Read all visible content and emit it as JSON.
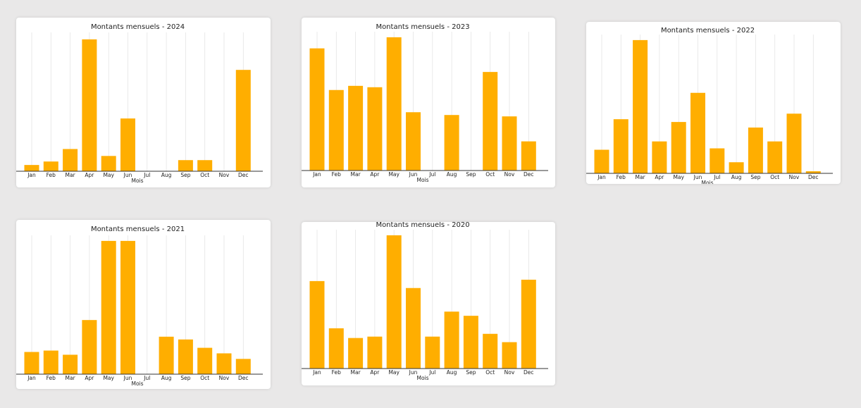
{
  "chart_data": [
    {
      "type": "bar",
      "title": "Montants mensuels - 2024",
      "x_label": "Mois",
      "color": "#ffae00",
      "grid": true,
      "ylim": [
        0,
        100
      ],
      "categories": [
        "Jan",
        "Feb",
        "Mar",
        "Apr",
        "May",
        "Jun",
        "Jul",
        "Aug",
        "Sep",
        "Oct",
        "Nov",
        "Dec"
      ],
      "values": [
        4.5,
        7,
        16,
        95,
        11,
        38,
        0,
        0,
        8,
        8,
        0,
        73
      ]
    },
    {
      "type": "bar",
      "title": "Montants mensuels - 2023",
      "x_label": "Mois",
      "color": "#ffae00",
      "grid": true,
      "ylim": [
        0,
        100
      ],
      "categories": [
        "Jan",
        "Feb",
        "Mar",
        "Apr",
        "May",
        "Jun",
        "Jul",
        "Aug",
        "Sep",
        "Oct",
        "Nov",
        "Dec"
      ],
      "values": [
        88,
        58,
        61,
        60,
        96,
        42,
        0,
        40,
        0,
        71,
        39,
        21
      ]
    },
    {
      "type": "bar",
      "title": "Montants mensuels - 2022",
      "x_label": "Mois",
      "color": "#ffae00",
      "grid": true,
      "ylim": [
        0,
        100
      ],
      "categories": [
        "Jan",
        "Feb",
        "Mar",
        "Apr",
        "May",
        "Jun",
        "Jul",
        "Aug",
        "Sep",
        "Oct",
        "Nov",
        "Dec"
      ],
      "values": [
        17,
        39,
        96,
        23,
        37,
        58,
        18,
        8,
        33,
        23,
        43,
        1.5
      ]
    },
    {
      "type": "bar",
      "title": "Montants mensuels - 2021",
      "x_label": "Mois",
      "color": "#ffae00",
      "grid": true,
      "ylim": [
        0,
        100
      ],
      "categories": [
        "Jan",
        "Feb",
        "Mar",
        "Apr",
        "May",
        "Jun",
        "Jul",
        "Aug",
        "Sep",
        "Oct",
        "Nov",
        "Dec"
      ],
      "values": [
        16,
        17,
        14,
        39,
        96,
        96,
        0,
        27,
        25,
        19,
        15,
        11
      ]
    },
    {
      "type": "bar",
      "title": "Montants mensuels - 2020",
      "x_label": "Mois",
      "color": "#ffae00",
      "grid": true,
      "ylim": [
        0,
        100
      ],
      "categories": [
        "Jan",
        "Feb",
        "Mar",
        "Apr",
        "May",
        "Jun",
        "Jul",
        "Aug",
        "Sep",
        "Oct",
        "Nov",
        "Dec"
      ],
      "values": [
        63,
        29,
        22,
        23,
        96,
        58,
        23,
        41,
        38,
        25,
        19,
        64
      ]
    }
  ]
}
